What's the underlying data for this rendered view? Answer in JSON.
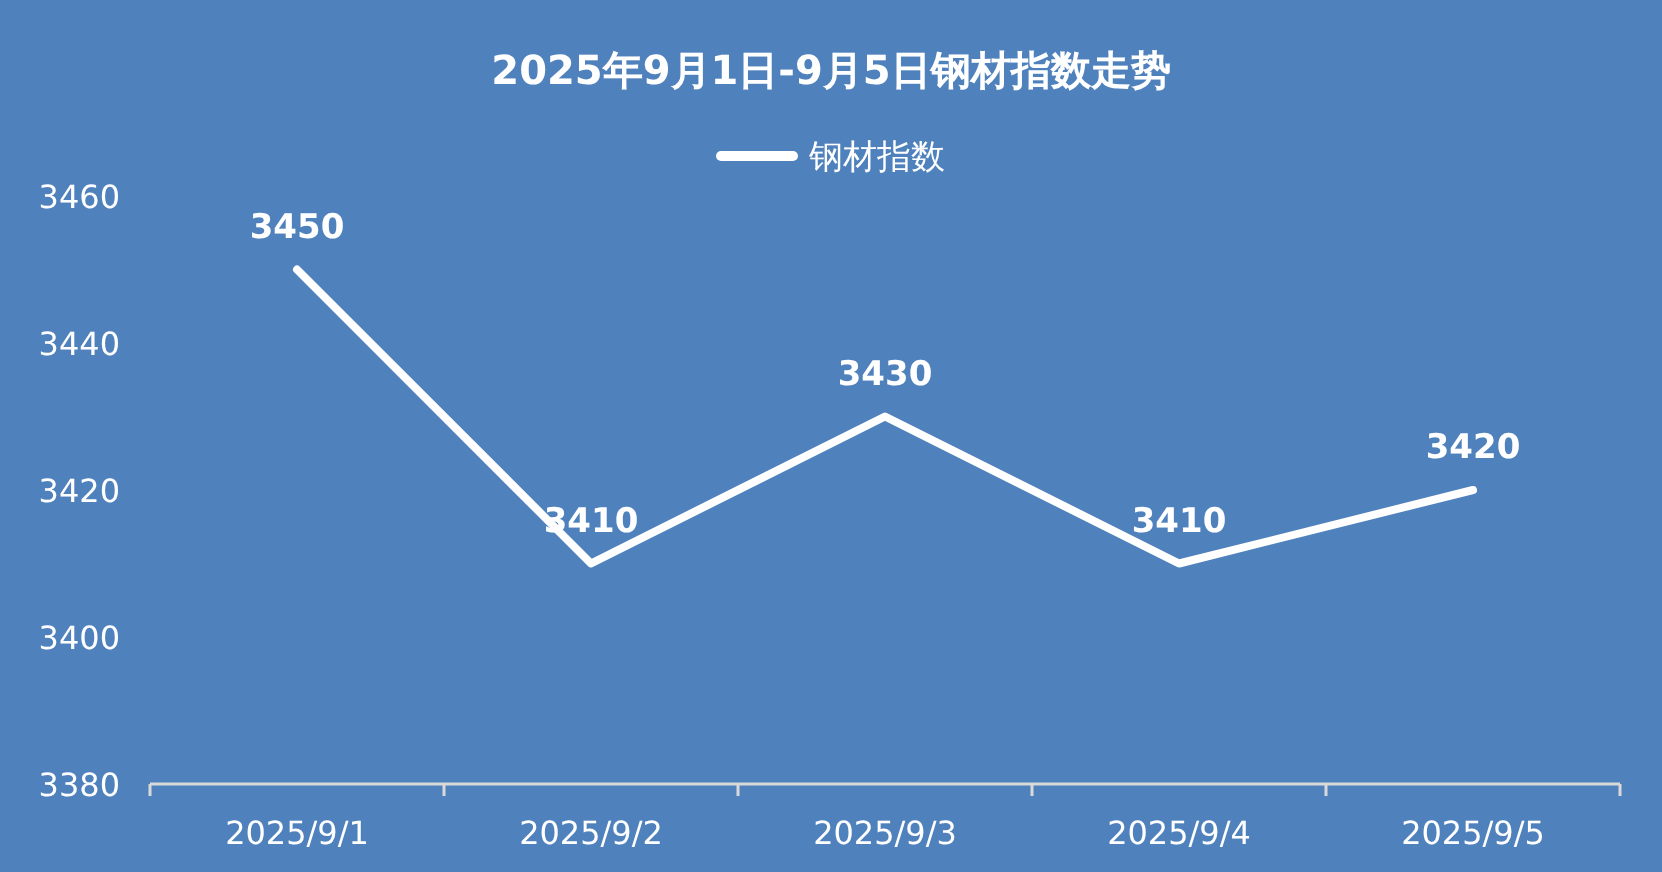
{
  "chart_data": {
    "type": "line",
    "title": "2025年9月1日-9月5日钢材指数走势",
    "categories": [
      "2025/9/1",
      "2025/9/2",
      "2025/9/3",
      "2025/9/4",
      "2025/9/5"
    ],
    "series": [
      {
        "name": "钢材指数",
        "color": "#ffffff",
        "values": [
          3450,
          3410,
          3430,
          3410,
          3420
        ]
      }
    ],
    "ylim": [
      3380,
      3460
    ],
    "yticks": [
      3380,
      3400,
      3420,
      3440,
      3460
    ],
    "grid": false,
    "legend": "top",
    "marker": "none",
    "line_style": "solid",
    "data_labels": true
  }
}
